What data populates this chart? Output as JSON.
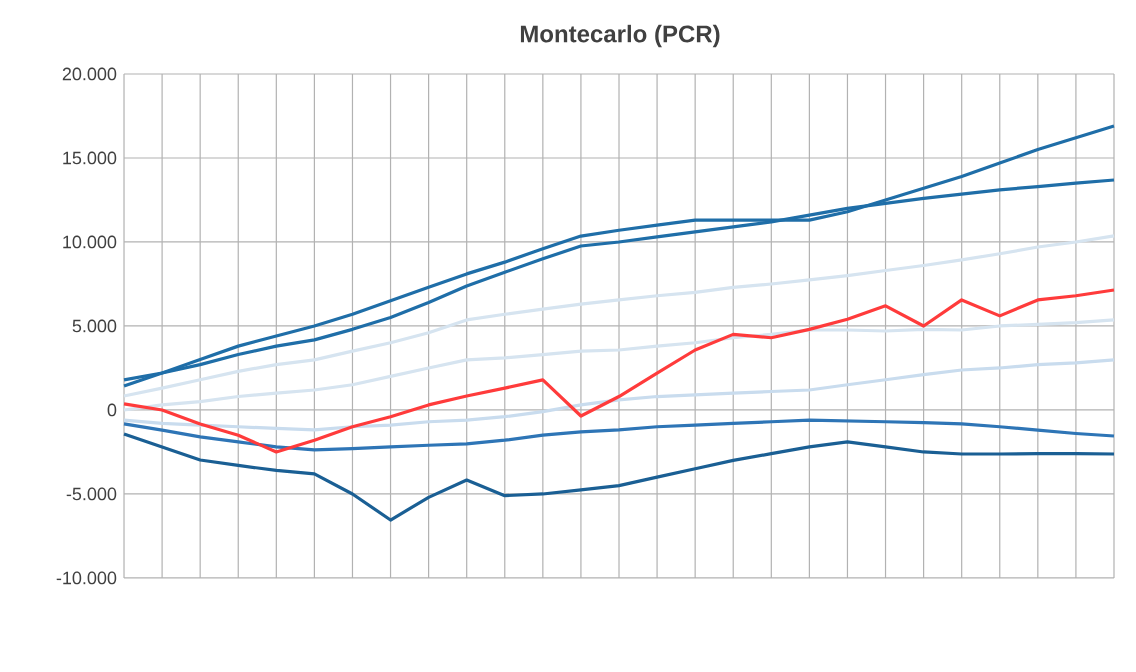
{
  "chart_data": {
    "type": "line",
    "title": "Montecarlo (PCR)",
    "categories": [
      null,
      null,
      null,
      null,
      null,
      null,
      null,
      null,
      null,
      null,
      null,
      null,
      null,
      null,
      null,
      null,
      null,
      null,
      null,
      null,
      null,
      null,
      null,
      null,
      null,
      null,
      null
    ],
    "ylim": [
      -10000,
      20000
    ],
    "yticks": [
      {
        "value": -10000,
        "label": "-10.000"
      },
      {
        "value": -5000,
        "label": "-5.000"
      },
      {
        "value": 0,
        "label": "0"
      },
      {
        "value": 5000,
        "label": "5.000"
      },
      {
        "value": 10000,
        "label": "10.000"
      },
      {
        "value": 15000,
        "label": "15.000"
      },
      {
        "value": 20000,
        "label": "20.000"
      }
    ],
    "grid": true,
    "series": [
      {
        "color": "#d6e4f0",
        "values": [
          830,
          1300,
          1800,
          2300,
          2700,
          2980,
          3500,
          4000,
          4600,
          5360,
          5700,
          6000,
          6300,
          6550,
          6800,
          7000,
          7300,
          7500,
          7740,
          8000,
          8300,
          8600,
          8930,
          9300,
          9700,
          10000,
          10360
        ]
      },
      {
        "color": "#d6e4f0",
        "values": [
          0,
          300,
          500,
          800,
          1000,
          1190,
          1500,
          2000,
          2500,
          2980,
          3100,
          3300,
          3500,
          3570,
          3800,
          4000,
          4300,
          4500,
          4760,
          4760,
          4700,
          4800,
          4760,
          5000,
          5100,
          5200,
          5360
        ]
      },
      {
        "color": "#c9dcee",
        "values": [
          -600,
          -800,
          -900,
          -1000,
          -1100,
          -1190,
          -1000,
          -900,
          -700,
          -600,
          -400,
          -100,
          300,
          600,
          800,
          900,
          1000,
          1100,
          1190,
          1500,
          1800,
          2100,
          2380,
          2500,
          2700,
          2800,
          2980
        ]
      },
      {
        "color": "#2e75b6",
        "values": [
          -830,
          -1200,
          -1600,
          -1900,
          -2200,
          -2380,
          -2300,
          -2200,
          -2100,
          -2020,
          -1800,
          -1500,
          -1300,
          -1190,
          -1000,
          -900,
          -800,
          -700,
          -600,
          -650,
          -700,
          -750,
          -830,
          -1000,
          -1200,
          -1400,
          -1550
        ]
      },
      {
        "color": "#1f6ea8",
        "values": [
          1790,
          2200,
          2700,
          3300,
          3800,
          4170,
          4800,
          5500,
          6400,
          7380,
          8200,
          9000,
          9760,
          10000,
          10300,
          10600,
          10900,
          11200,
          11600,
          12000,
          12300,
          12600,
          12850,
          13100,
          13300,
          13500,
          13690
        ]
      },
      {
        "color": "#1f6ea8",
        "values": [
          1430,
          2200,
          3000,
          3800,
          4400,
          5000,
          5700,
          6500,
          7300,
          8100,
          8800,
          9600,
          10350,
          10700,
          11000,
          11300,
          11300,
          11300,
          11300,
          11800,
          12500,
          13200,
          13900,
          14700,
          15500,
          16200,
          16900
        ]
      },
      {
        "color": "#1a5f94",
        "values": [
          -1430,
          -2200,
          -2980,
          -3300,
          -3600,
          -3800,
          -5000,
          -6550,
          -5200,
          -4170,
          -5100,
          -5000,
          -4760,
          -4500,
          -4000,
          -3500,
          -3000,
          -2600,
          -2200,
          -1900,
          -2200,
          -2500,
          -2620,
          -2620,
          -2600,
          -2600,
          -2620
        ]
      },
      {
        "color": "#ff3b3b",
        "values": [
          360,
          0,
          -830,
          -1500,
          -2500,
          -1800,
          -1000,
          -400,
          300,
          830,
          1300,
          1790,
          -360,
          800,
          2200,
          3570,
          4500,
          4300,
          4800,
          5400,
          6200,
          5000,
          6550,
          5600,
          6550,
          6800,
          7140
        ]
      }
    ]
  }
}
